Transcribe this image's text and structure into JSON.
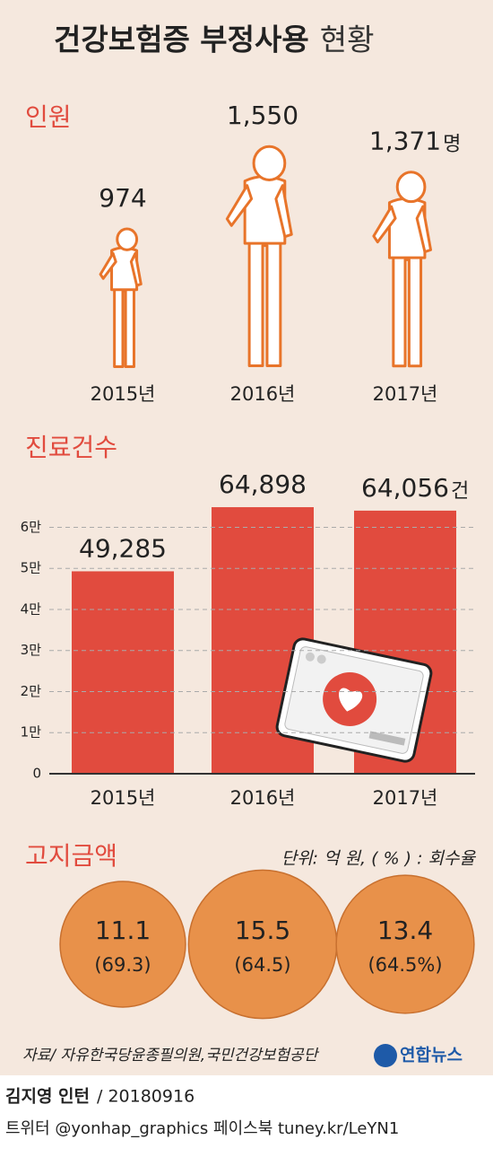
{
  "title": {
    "main": "건강보험증 부정사용",
    "sub": "현황"
  },
  "chart_data": [
    {
      "type": "pictograph",
      "title": "인원",
      "categories": [
        "2015년",
        "2016년",
        "2017년"
      ],
      "values": [
        974,
        1550,
        1371
      ],
      "value_labels": [
        "974",
        "1,550",
        "1,371"
      ],
      "unit": "명",
      "color": "#e8742a"
    },
    {
      "type": "bar",
      "title": "진료건수",
      "categories": [
        "2015년",
        "2016년",
        "2017년"
      ],
      "values": [
        49285,
        64898,
        64056
      ],
      "value_labels": [
        "49,285",
        "64,898",
        "64,056"
      ],
      "unit": "건",
      "color": "#e14b3e",
      "ylim": [
        0,
        66000
      ],
      "yticks": [
        0,
        {
          "value": 10000,
          "label": "1만"
        },
        {
          "value": 20000,
          "label": "2만"
        },
        {
          "value": 30000,
          "label": "3만"
        },
        {
          "value": 40000,
          "label": "4만"
        },
        {
          "value": 50000,
          "label": "5만"
        },
        {
          "value": 60000,
          "label": "6만"
        }
      ],
      "grid": true
    },
    {
      "type": "circles",
      "title": "고지금액",
      "note": "단위: 억 원, ( % ) : 회수율",
      "color": "#e8914a",
      "series": [
        {
          "name": "고지금액",
          "values": [
            11.1,
            15.5,
            13.4
          ]
        },
        {
          "name": "회수율",
          "values": [
            69.3,
            64.5,
            64.5
          ],
          "value_labels": [
            "(69.3)",
            "(64.5)",
            "(64.5%)"
          ]
        }
      ]
    }
  ],
  "source": "자료/ 자유한국당윤종필의원,국민건강보험공단",
  "logo": "연합뉴스",
  "byline": {
    "name": "김지영 인턴",
    "date": "/ 20180916"
  },
  "footer": "트위터 @yonhap_graphics  페이스북 tuney.kr/LeYN1"
}
